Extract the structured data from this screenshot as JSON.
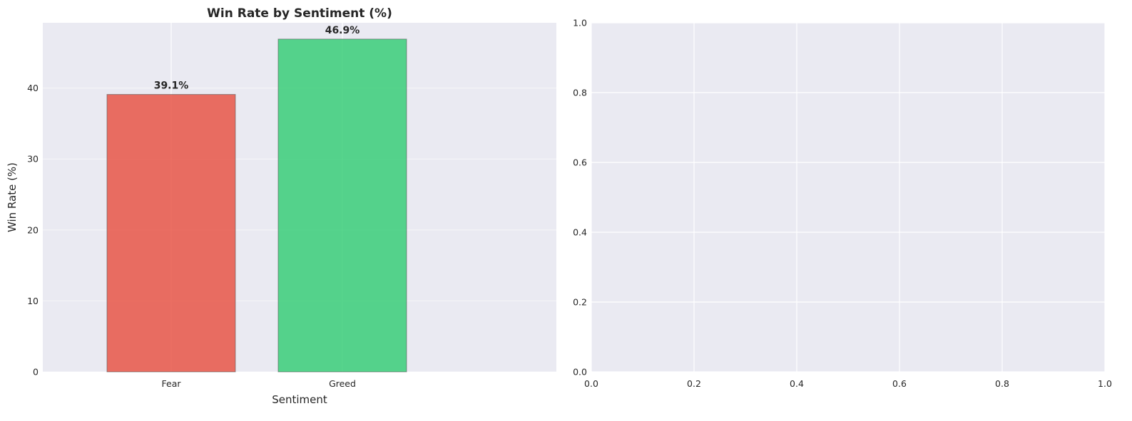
{
  "chart_data": [
    {
      "type": "bar",
      "title": "Win Rate by Sentiment (%)",
      "xlabel": "Sentiment",
      "ylabel": "Win Rate (%)",
      "categories": [
        "Fear",
        "Greed"
      ],
      "values": [
        39.1,
        46.9
      ],
      "data_labels": [
        "39.1%",
        "46.9%"
      ],
      "colors": [
        "#e74c3c",
        "#2ecc71"
      ],
      "ylim": [
        0,
        49.2
      ],
      "yticks": [
        0,
        10,
        20,
        30,
        40
      ],
      "ytick_labels": [
        "0",
        "10",
        "20",
        "30",
        "40"
      ],
      "grid": true,
      "background": "#eaeaf2"
    },
    {
      "type": "scatter",
      "title": "",
      "xlabel": "",
      "ylabel": "",
      "xlim": [
        0,
        1
      ],
      "ylim": [
        0,
        1
      ],
      "xticks": [
        0,
        0.2,
        0.4,
        0.6,
        0.8,
        1.0
      ],
      "xtick_labels": [
        "0.0",
        "0.2",
        "0.4",
        "0.6",
        "0.8",
        "1.0"
      ],
      "yticks": [
        0,
        0.2,
        0.4,
        0.6,
        0.8,
        1.0
      ],
      "ytick_labels": [
        "0.0",
        "0.2",
        "0.4",
        "0.6",
        "0.8",
        "1.0"
      ],
      "grid": true,
      "background": "#eaeaf2"
    }
  ]
}
